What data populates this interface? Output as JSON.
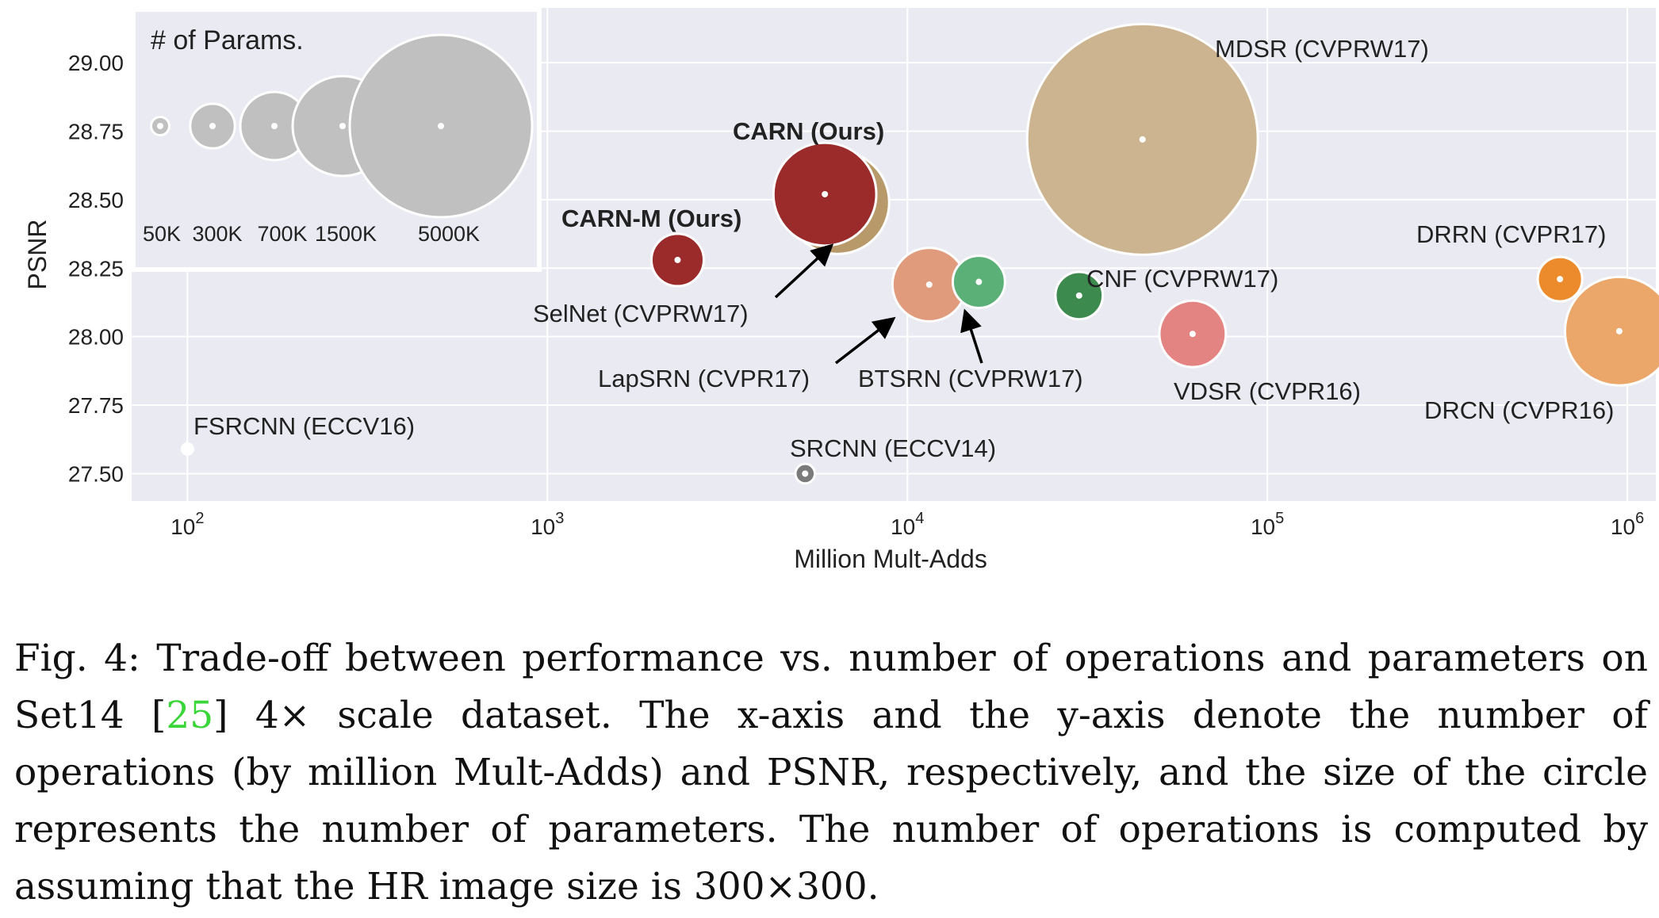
{
  "chart_data": {
    "type": "scatter",
    "xlabel": "Million Mult-Adds",
    "ylabel": "PSNR",
    "xscale": "log",
    "xlim": [
      70,
      1200000
    ],
    "ylim": [
      27.4,
      29.2
    ],
    "xticks": [
      {
        "value": 100,
        "base": "10",
        "exp": "2"
      },
      {
        "value": 1000,
        "base": "10",
        "exp": "3"
      },
      {
        "value": 10000,
        "base": "10",
        "exp": "4"
      },
      {
        "value": 100000,
        "base": "10",
        "exp": "5"
      },
      {
        "value": 1000000,
        "base": "10",
        "exp": "6"
      }
    ],
    "yticks": [
      "27.50",
      "27.75",
      "28.00",
      "28.25",
      "28.50",
      "28.75",
      "29.00"
    ],
    "grid": true,
    "background": "#eaeaf2",
    "legend": {
      "title": "# of Params.",
      "placement": "top-left",
      "color": "#c0c0c0",
      "entries": [
        {
          "label": "50K",
          "params_k": 50
        },
        {
          "label": "300K",
          "params_k": 300
        },
        {
          "label": "700K",
          "params_k": 700
        },
        {
          "label": "1500K",
          "params_k": 1500
        },
        {
          "label": "5000K",
          "params_k": 5000
        }
      ]
    },
    "points": [
      {
        "label": "FSRCNN (ECCV16)",
        "x": 100,
        "y": 27.59,
        "params_k": 12,
        "color": "#ffffff",
        "bold": false
      },
      {
        "label": "SRCNN (ECCV14)",
        "x": 5200,
        "y": 27.5,
        "params_k": 57,
        "color": "#7a7a7a",
        "bold": false
      },
      {
        "label": "CARN-M (Ours)",
        "x": 2300,
        "y": 28.28,
        "params_k": 412,
        "color": "#9b2a2a",
        "bold": true
      },
      {
        "label": "SelNet (CVPRW17)",
        "x": 6400,
        "y": 28.49,
        "params_k": 1600,
        "color": "#b89a6a",
        "bold": false
      },
      {
        "label": "CARN (Ours)",
        "x": 5900,
        "y": 28.52,
        "params_k": 1592,
        "color": "#9b2a2a",
        "bold": true
      },
      {
        "label": "LapSRN (CVPR17)",
        "x": 11500,
        "y": 28.19,
        "params_k": 813,
        "color": "#e09b7c",
        "bold": false
      },
      {
        "label": "BTSRN (CVPRW17)",
        "x": 15800,
        "y": 28.2,
        "params_k": 410,
        "color": "#5bb077",
        "bold": false
      },
      {
        "label": "CNF (CVPRW17)",
        "x": 30000,
        "y": 28.15,
        "params_k": 337,
        "color": "#3d8a4f",
        "bold": false
      },
      {
        "label": "MDSR (CVPRW17)",
        "x": 45000,
        "y": 28.72,
        "params_k": 8000,
        "color": "#ccb491",
        "bold": false
      },
      {
        "label": "VDSR (CVPR16)",
        "x": 62000,
        "y": 28.01,
        "params_k": 665,
        "color": "#e38483",
        "bold": false
      },
      {
        "label": "DRRN (CVPR17)",
        "x": 650000,
        "y": 28.21,
        "params_k": 297,
        "color": "#ec8b2c",
        "bold": false
      },
      {
        "label": "DRCN (CVPR16)",
        "x": 950000,
        "y": 28.02,
        "params_k": 1774,
        "color": "#eba76a",
        "bold": false
      }
    ],
    "arrows": [
      {
        "from_label": "SelNet (CVPRW17)",
        "to_label": "SelNet (CVPRW17)"
      },
      {
        "from_label": "LapSRN (CVPR17)",
        "to_label": "LapSRN (CVPR17)"
      },
      {
        "from_label": "BTSRN (CVPRW17)",
        "to_label": "BTSRN (CVPRW17)"
      }
    ]
  },
  "caption": {
    "prefix": "Fig. 4: Trade-off between performance vs. number of operations and parameters on Set14 [",
    "ref": "25",
    "suffix": "] 4× scale dataset. The x-axis and the y-axis denote the number of operations (by million Mult-Adds) and PSNR, respectively, and the size of the circle represents the number of parameters. The number of operations is computed by assuming that the HR image size is 300×300."
  }
}
